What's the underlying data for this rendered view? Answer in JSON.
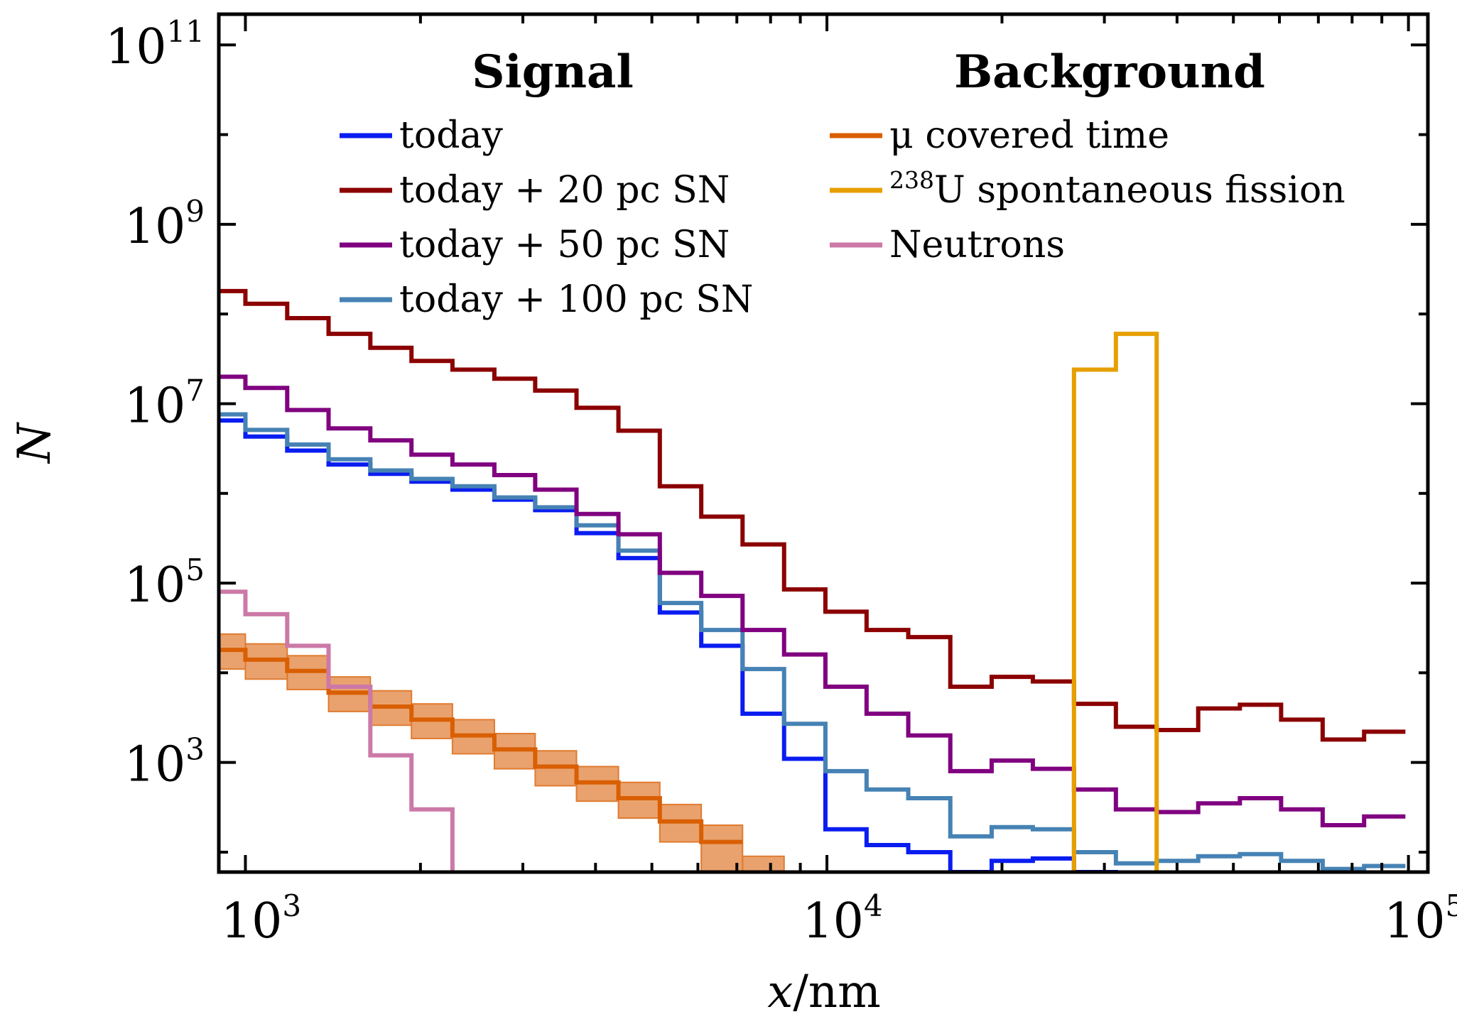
{
  "chart_data": {
    "type": "line",
    "step": true,
    "xscale": "log",
    "yscale": "log",
    "xlabel_italic": "x",
    "xlabel_rest": "/nm",
    "ylabel": "N",
    "xlim": [
      900,
      108000
    ],
    "ylim": [
      60,
      220000000000
    ],
    "xticks": [
      {
        "base": "10",
        "exp": "3",
        "value": 1000
      },
      {
        "base": "10",
        "exp": "4",
        "value": 10000
      },
      {
        "base": "10",
        "exp": "5",
        "value": 100000
      }
    ],
    "yticks": [
      {
        "base": "10",
        "exp": "3",
        "value": 1000
      },
      {
        "base": "10",
        "exp": "5",
        "value": 100000
      },
      {
        "base": "10",
        "exp": "7",
        "value": 10000000
      },
      {
        "base": "10",
        "exp": "9",
        "value": 1000000000
      },
      {
        "base": "10",
        "exp": "11",
        "value": 100000000000
      }
    ],
    "legend_placement": "top",
    "legend": {
      "signal_title": "Signal",
      "background_title": "Background",
      "signal_items": [
        {
          "label": "today",
          "color": "#0a1df0"
        },
        {
          "label": "today + 20 pc SN",
          "color": "#8b0000"
        },
        {
          "label": "today + 50 pc SN",
          "color": "#800080"
        },
        {
          "label": "today + 100 pc SN",
          "color": "#4682b4"
        }
      ],
      "background_items": [
        {
          "label": "μ covered time",
          "color": "#d95f02"
        },
        {
          "label_sup": "238",
          "label": "U spontaneous fission",
          "color": "#e69f00"
        },
        {
          "label": "Neutrons",
          "color": "#cc79a7"
        }
      ]
    },
    "bin_edges": [
      900,
      1000,
      1180,
      1390,
      1640,
      1930,
      2270,
      2680,
      3150,
      3710,
      4380,
      5160,
      6080,
      7160,
      8440,
      9940,
      11700,
      13800,
      16300,
      19200,
      22600,
      26600,
      31400,
      36900,
      43500,
      51300,
      60400,
      71200,
      83900,
      98800,
      108000
    ],
    "series": [
      {
        "name": "today",
        "color": "#0a1df0",
        "values": [
          6500000,
          4300000,
          3000000,
          2100000,
          1650000,
          1350000,
          1100000,
          850000,
          650000,
          360000,
          190000,
          47000,
          20000,
          3500,
          1100,
          180,
          120,
          100,
          60,
          80,
          85,
          60,
          55,
          null,
          null,
          null,
          null,
          null,
          null,
          null
        ]
      },
      {
        "name": "today + 20 pc SN",
        "color": "#8b0000",
        "values": [
          180000000,
          130000000,
          90000000,
          60000000,
          42000000,
          30000000,
          24000000,
          19000000,
          14000000,
          9000000,
          5000000,
          1200000,
          550000,
          270000,
          85000,
          48000,
          30000,
          25000,
          7000,
          9000,
          8000,
          4500,
          2500,
          2300,
          4000,
          4400,
          3000,
          1800,
          2200,
          null
        ]
      },
      {
        "name": "today + 50 pc SN",
        "color": "#800080",
        "values": [
          20000000,
          15000000,
          8500000,
          5300000,
          3900000,
          2700000,
          2100000,
          1600000,
          1100000,
          590000,
          350000,
          130000,
          72000,
          30000,
          16000,
          7000,
          3500,
          2000,
          800,
          1050,
          850,
          500,
          300,
          280,
          350,
          400,
          300,
          200,
          250,
          null
        ]
      },
      {
        "name": "today + 100 pc SN",
        "color": "#4682b4",
        "values": [
          7600000,
          5100000,
          3500000,
          2400000,
          1800000,
          1450000,
          1200000,
          900000,
          700000,
          440000,
          230000,
          60000,
          30000,
          11000,
          2700,
          800,
          500,
          400,
          150,
          190,
          180,
          100,
          75,
          80,
          90,
          95,
          80,
          65,
          70,
          null
        ]
      },
      {
        "name": "μ covered time",
        "color": "#d95f02",
        "band_color": "#e07b30",
        "values": [
          18000,
          14000,
          10500,
          6000,
          4200,
          3000,
          2000,
          1400,
          900,
          600,
          400,
          220,
          130,
          null,
          null,
          null,
          null,
          null,
          null,
          null,
          null,
          null,
          null,
          null,
          null,
          null,
          null,
          null,
          null,
          null
        ],
        "band_low": [
          11000,
          8500,
          6500,
          3700,
          2600,
          1850,
          1250,
          850,
          550,
          370,
          240,
          130,
          60,
          30,
          null,
          null,
          null,
          null,
          null,
          null,
          null,
          null,
          null,
          null,
          null,
          null,
          null,
          null,
          null,
          null
        ],
        "band_high": [
          27000,
          21000,
          15500,
          9000,
          6300,
          4500,
          3000,
          2100,
          1350,
          900,
          600,
          340,
          200,
          90,
          null,
          null,
          null,
          null,
          null,
          null,
          null,
          null,
          null,
          null,
          null,
          null,
          null,
          null,
          null,
          null
        ]
      },
      {
        "name": "238U spontaneous fission",
        "color": "#e69f00",
        "values": [
          null,
          null,
          null,
          null,
          null,
          null,
          null,
          null,
          null,
          null,
          null,
          null,
          null,
          null,
          null,
          null,
          null,
          null,
          null,
          null,
          null,
          24000000,
          60000000,
          null,
          null,
          null,
          null,
          null,
          null,
          null
        ]
      },
      {
        "name": "Neutrons",
        "color": "#cc79a7",
        "values": [
          80000,
          45000,
          20000,
          7000,
          1200,
          300,
          null,
          null,
          null,
          null,
          null,
          null,
          null,
          null,
          null,
          null,
          null,
          null,
          null,
          null,
          null,
          null,
          null,
          null,
          null,
          null,
          null,
          null,
          null,
          null
        ]
      }
    ]
  }
}
